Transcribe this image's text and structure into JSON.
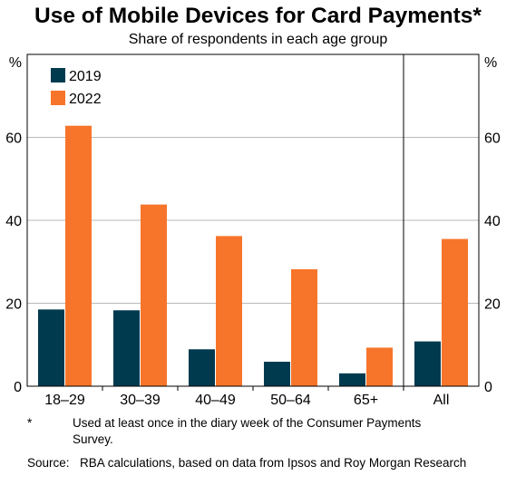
{
  "chart_data": {
    "type": "bar",
    "title": "Use of Mobile Devices for Card Payments*",
    "subtitle": "Share of respondents in each age group",
    "categories": [
      "18–29",
      "30–39",
      "40–49",
      "50–64",
      "65+",
      "All"
    ],
    "series": [
      {
        "name": "2019",
        "color": "#003a4f",
        "values": [
          18.5,
          18.3,
          8.9,
          5.9,
          3.1,
          10.8
        ]
      },
      {
        "name": "2022",
        "color": "#f7752a",
        "values": [
          62.8,
          43.8,
          36.2,
          28.2,
          9.3,
          35.5
        ]
      }
    ],
    "ylim": [
      0,
      80
    ],
    "yticks": [
      0,
      20,
      40,
      60
    ],
    "ylabel_left": "%",
    "ylabel_right": "%",
    "legend_position": "top-left",
    "grid": true
  },
  "notes": {
    "footnote_marker": "*",
    "footnote_text": "Used at least once in the diary week of the Consumer Payments Survey.",
    "source_label": "Source:",
    "source_text": "RBA calculations, based on data from Ipsos and Roy Morgan Research"
  }
}
